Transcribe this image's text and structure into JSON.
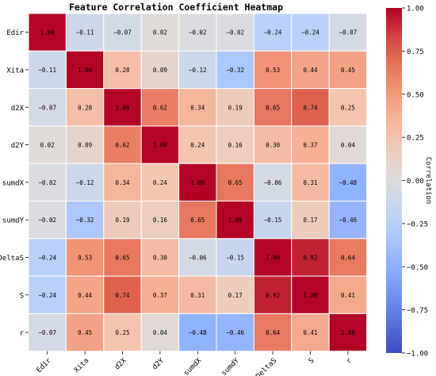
{
  "chart_data": {
    "type": "heatmap",
    "title": "Feature Correlation Coefficient Heatmap",
    "xlabel": "",
    "ylabel": "",
    "rows": [
      "Edir",
      "Xita",
      "d2X",
      "d2Y",
      "sumdX",
      "sumdY",
      "DeltaS",
      "S",
      "r"
    ],
    "columns": [
      "Edir",
      "Xita",
      "d2X",
      "d2Y",
      "sumdX",
      "sumdY",
      "DeltaS",
      "S",
      "r"
    ],
    "values": [
      [
        1.0,
        -0.11,
        -0.07,
        0.02,
        -0.02,
        -0.02,
        -0.24,
        -0.24,
        -0.07
      ],
      [
        -0.11,
        1.0,
        0.28,
        0.09,
        -0.12,
        -0.32,
        0.53,
        0.44,
        0.45
      ],
      [
        -0.07,
        0.28,
        1.0,
        0.62,
        0.34,
        0.19,
        0.65,
        0.74,
        0.25
      ],
      [
        0.02,
        0.09,
        0.62,
        1.0,
        0.24,
        0.16,
        0.3,
        0.37,
        0.04
      ],
      [
        -0.02,
        -0.12,
        0.34,
        0.24,
        1.0,
        0.65,
        -0.06,
        0.31,
        -0.48
      ],
      [
        -0.02,
        -0.32,
        0.19,
        0.16,
        0.65,
        1.0,
        -0.15,
        0.17,
        -0.46
      ],
      [
        -0.24,
        0.53,
        0.65,
        0.3,
        -0.06,
        -0.15,
        1.0,
        0.92,
        0.64
      ],
      [
        -0.24,
        0.44,
        0.74,
        0.37,
        0.31,
        0.17,
        0.92,
        1.0,
        0.41
      ],
      [
        -0.07,
        0.45,
        0.25,
        0.04,
        -0.48,
        -0.46,
        0.64,
        0.41,
        1.0
      ]
    ],
    "colormap": "coolwarm",
    "vmin": -1.0,
    "vmax": 1.0,
    "colorbar": {
      "label": "Correlation",
      "ticks": [
        "1.00",
        "0.75",
        "0.50",
        "0.25",
        "0.00",
        "−0.25",
        "−0.50",
        "−0.75",
        "−1.00"
      ],
      "tick_values": [
        1.0,
        0.75,
        0.5,
        0.25,
        0.0,
        -0.25,
        -0.5,
        -0.75,
        -1.0
      ]
    },
    "grid": true,
    "cell_border_color": "#ffffff"
  }
}
